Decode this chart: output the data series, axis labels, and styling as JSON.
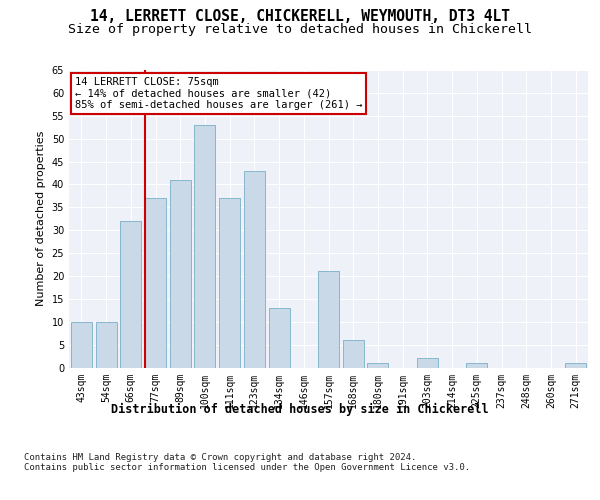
{
  "title1": "14, LERRETT CLOSE, CHICKERELL, WEYMOUTH, DT3 4LT",
  "title2": "Size of property relative to detached houses in Chickerell",
  "xlabel": "Distribution of detached houses by size in Chickerell",
  "ylabel": "Number of detached properties",
  "categories": [
    "43sqm",
    "54sqm",
    "66sqm",
    "77sqm",
    "89sqm",
    "100sqm",
    "111sqm",
    "123sqm",
    "134sqm",
    "146sqm",
    "157sqm",
    "168sqm",
    "180sqm",
    "191sqm",
    "203sqm",
    "214sqm",
    "225sqm",
    "237sqm",
    "248sqm",
    "260sqm",
    "271sqm"
  ],
  "values": [
    10,
    10,
    32,
    37,
    41,
    53,
    37,
    43,
    13,
    0,
    21,
    6,
    1,
    0,
    2,
    0,
    1,
    0,
    0,
    0,
    1
  ],
  "bar_color": "#c9d9e8",
  "bar_edge_color": "#7aafc8",
  "vline_color": "#cc0000",
  "vline_x_idx": 3,
  "annotation_text": "14 LERRETT CLOSE: 75sqm\n← 14% of detached houses are smaller (42)\n85% of semi-detached houses are larger (261) →",
  "annotation_box_color": "#ffffff",
  "annotation_box_edge": "#cc0000",
  "ylim": [
    0,
    65
  ],
  "yticks": [
    0,
    5,
    10,
    15,
    20,
    25,
    30,
    35,
    40,
    45,
    50,
    55,
    60,
    65
  ],
  "background_color": "#eef2f8",
  "grid_color": "#ffffff",
  "footer": "Contains HM Land Registry data © Crown copyright and database right 2024.\nContains public sector information licensed under the Open Government Licence v3.0.",
  "title1_fontsize": 10.5,
  "title2_fontsize": 9.5,
  "xlabel_fontsize": 8.5,
  "ylabel_fontsize": 8,
  "tick_fontsize": 7,
  "footer_fontsize": 6.5,
  "ann_fontsize": 7.5
}
